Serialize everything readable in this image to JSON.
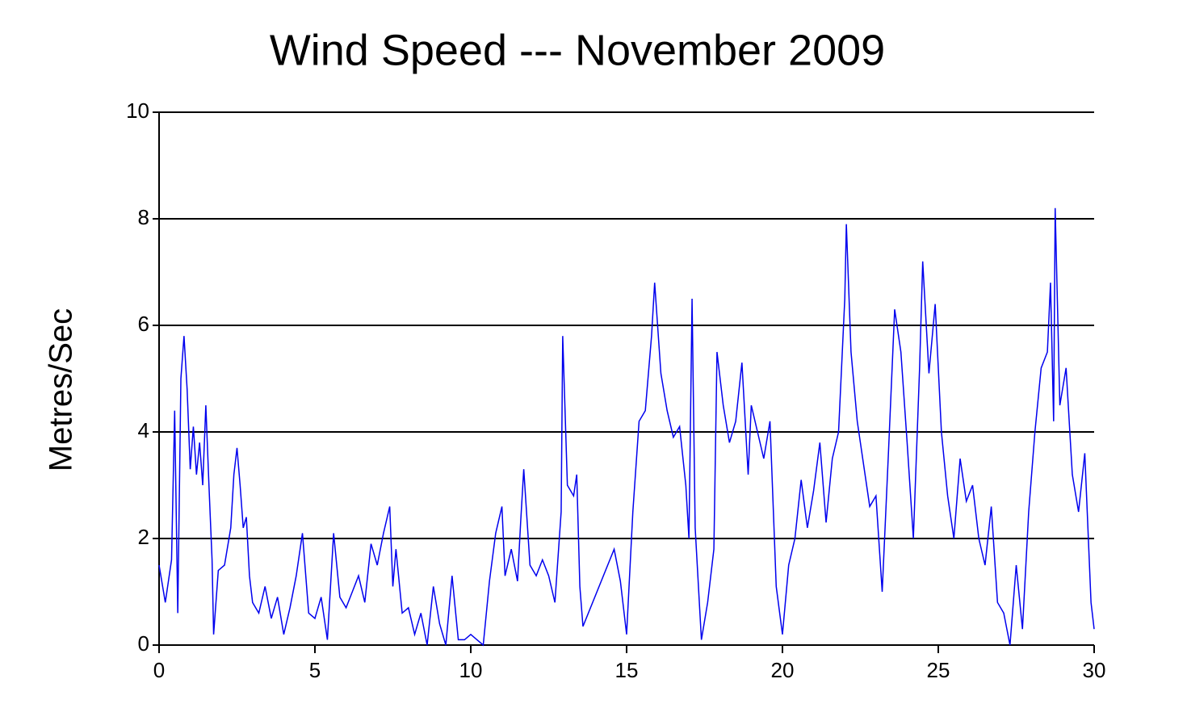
{
  "chart_data": {
    "type": "line",
    "title": "Wind Speed --- November 2009",
    "ylabel": "Metres/Sec",
    "x": [
      0,
      0.2,
      0.4,
      0.5,
      0.6,
      0.7,
      0.8,
      0.9,
      1.0,
      1.1,
      1.2,
      1.3,
      1.4,
      1.5,
      1.6,
      1.7,
      1.75,
      1.9,
      2.1,
      2.3,
      2.4,
      2.5,
      2.6,
      2.7,
      2.8,
      2.9,
      3.0,
      3.2,
      3.4,
      3.6,
      3.8,
      4.0,
      4.2,
      4.4,
      4.6,
      4.8,
      5.0,
      5.2,
      5.4,
      5.6,
      5.8,
      6.0,
      6.2,
      6.4,
      6.6,
      6.8,
      7.0,
      7.2,
      7.4,
      7.5,
      7.6,
      7.8,
      8.0,
      8.2,
      8.4,
      8.6,
      8.8,
      9.0,
      9.2,
      9.4,
      9.6,
      9.8,
      10.0,
      10.2,
      10.4,
      10.6,
      10.8,
      11.0,
      11.1,
      11.3,
      11.5,
      11.6,
      11.7,
      11.9,
      12.1,
      12.3,
      12.5,
      12.7,
      12.9,
      12.95,
      13.1,
      13.3,
      13.4,
      13.5,
      13.6,
      14.6,
      14.8,
      15.0,
      15.2,
      15.4,
      15.6,
      15.8,
      15.9,
      16.1,
      16.3,
      16.5,
      16.7,
      16.9,
      17.0,
      17.1,
      17.2,
      17.4,
      17.6,
      17.8,
      17.9,
      18.1,
      18.3,
      18.5,
      18.7,
      18.9,
      19.0,
      19.2,
      19.4,
      19.6,
      19.8,
      20.0,
      20.2,
      20.4,
      20.6,
      20.8,
      21.0,
      21.2,
      21.4,
      21.6,
      21.8,
      22.0,
      22.05,
      22.2,
      22.4,
      22.6,
      22.8,
      23.0,
      23.2,
      23.4,
      23.6,
      23.8,
      24.0,
      24.2,
      24.4,
      24.5,
      24.7,
      24.9,
      25.1,
      25.3,
      25.5,
      25.7,
      25.9,
      26.1,
      26.3,
      26.5,
      26.7,
      26.9,
      27.1,
      27.3,
      27.5,
      27.7,
      27.9,
      28.1,
      28.3,
      28.5,
      28.6,
      28.7,
      28.75,
      28.9,
      29.1,
      29.3,
      29.5,
      29.7,
      29.9,
      30.0
    ],
    "series": [
      {
        "name": "Wind speed",
        "color": "#0000ee",
        "values": [
          1.5,
          0.8,
          1.6,
          4.4,
          0.6,
          5.0,
          5.8,
          4.8,
          3.3,
          4.1,
          3.2,
          3.8,
          3.0,
          4.5,
          3.0,
          1.6,
          0.2,
          1.4,
          1.5,
          2.2,
          3.2,
          3.7,
          3.0,
          2.2,
          2.4,
          1.3,
          0.8,
          0.6,
          1.1,
          0.5,
          0.9,
          0.2,
          0.7,
          1.3,
          2.1,
          0.6,
          0.5,
          0.9,
          0.1,
          2.1,
          0.9,
          0.7,
          1.0,
          1.3,
          0.8,
          1.9,
          1.5,
          2.1,
          2.6,
          1.1,
          1.8,
          0.6,
          0.7,
          0.2,
          0.6,
          0.0,
          1.1,
          0.4,
          0.0,
          1.3,
          0.1,
          0.1,
          0.2,
          0.1,
          0.0,
          1.2,
          2.1,
          2.6,
          1.3,
          1.8,
          1.2,
          2.3,
          3.3,
          1.5,
          1.3,
          1.6,
          1.3,
          0.8,
          2.5,
          5.8,
          3.0,
          2.8,
          3.2,
          1.1,
          0.35,
          1.8,
          1.2,
          0.2,
          2.5,
          4.2,
          4.4,
          5.8,
          6.8,
          5.1,
          4.4,
          3.9,
          4.1,
          3.0,
          2.0,
          6.5,
          2.2,
          0.1,
          0.8,
          1.8,
          5.5,
          4.5,
          3.8,
          4.2,
          5.3,
          3.2,
          4.5,
          4.0,
          3.5,
          4.2,
          1.1,
          0.2,
          1.5,
          2.0,
          3.1,
          2.2,
          2.9,
          3.8,
          2.3,
          3.5,
          4.0,
          6.5,
          7.9,
          5.5,
          4.2,
          3.4,
          2.6,
          2.8,
          1.0,
          3.6,
          6.3,
          5.5,
          3.8,
          2.0,
          5.2,
          7.2,
          5.1,
          6.4,
          4.0,
          2.8,
          2.0,
          3.5,
          2.7,
          3.0,
          2.0,
          1.5,
          2.6,
          0.8,
          0.6,
          0.0,
          1.5,
          0.3,
          2.5,
          4.0,
          5.2,
          5.5,
          6.8,
          4.2,
          8.2,
          4.5,
          5.2,
          3.2,
          2.5,
          3.6,
          0.8,
          0.3
        ]
      }
    ],
    "xlim": [
      0,
      30
    ],
    "xticks": [
      0,
      5,
      10,
      15,
      20,
      25,
      30
    ],
    "ylim": [
      0,
      10
    ],
    "yticks": [
      0,
      2,
      4,
      6,
      8,
      10
    ],
    "grid": true
  }
}
